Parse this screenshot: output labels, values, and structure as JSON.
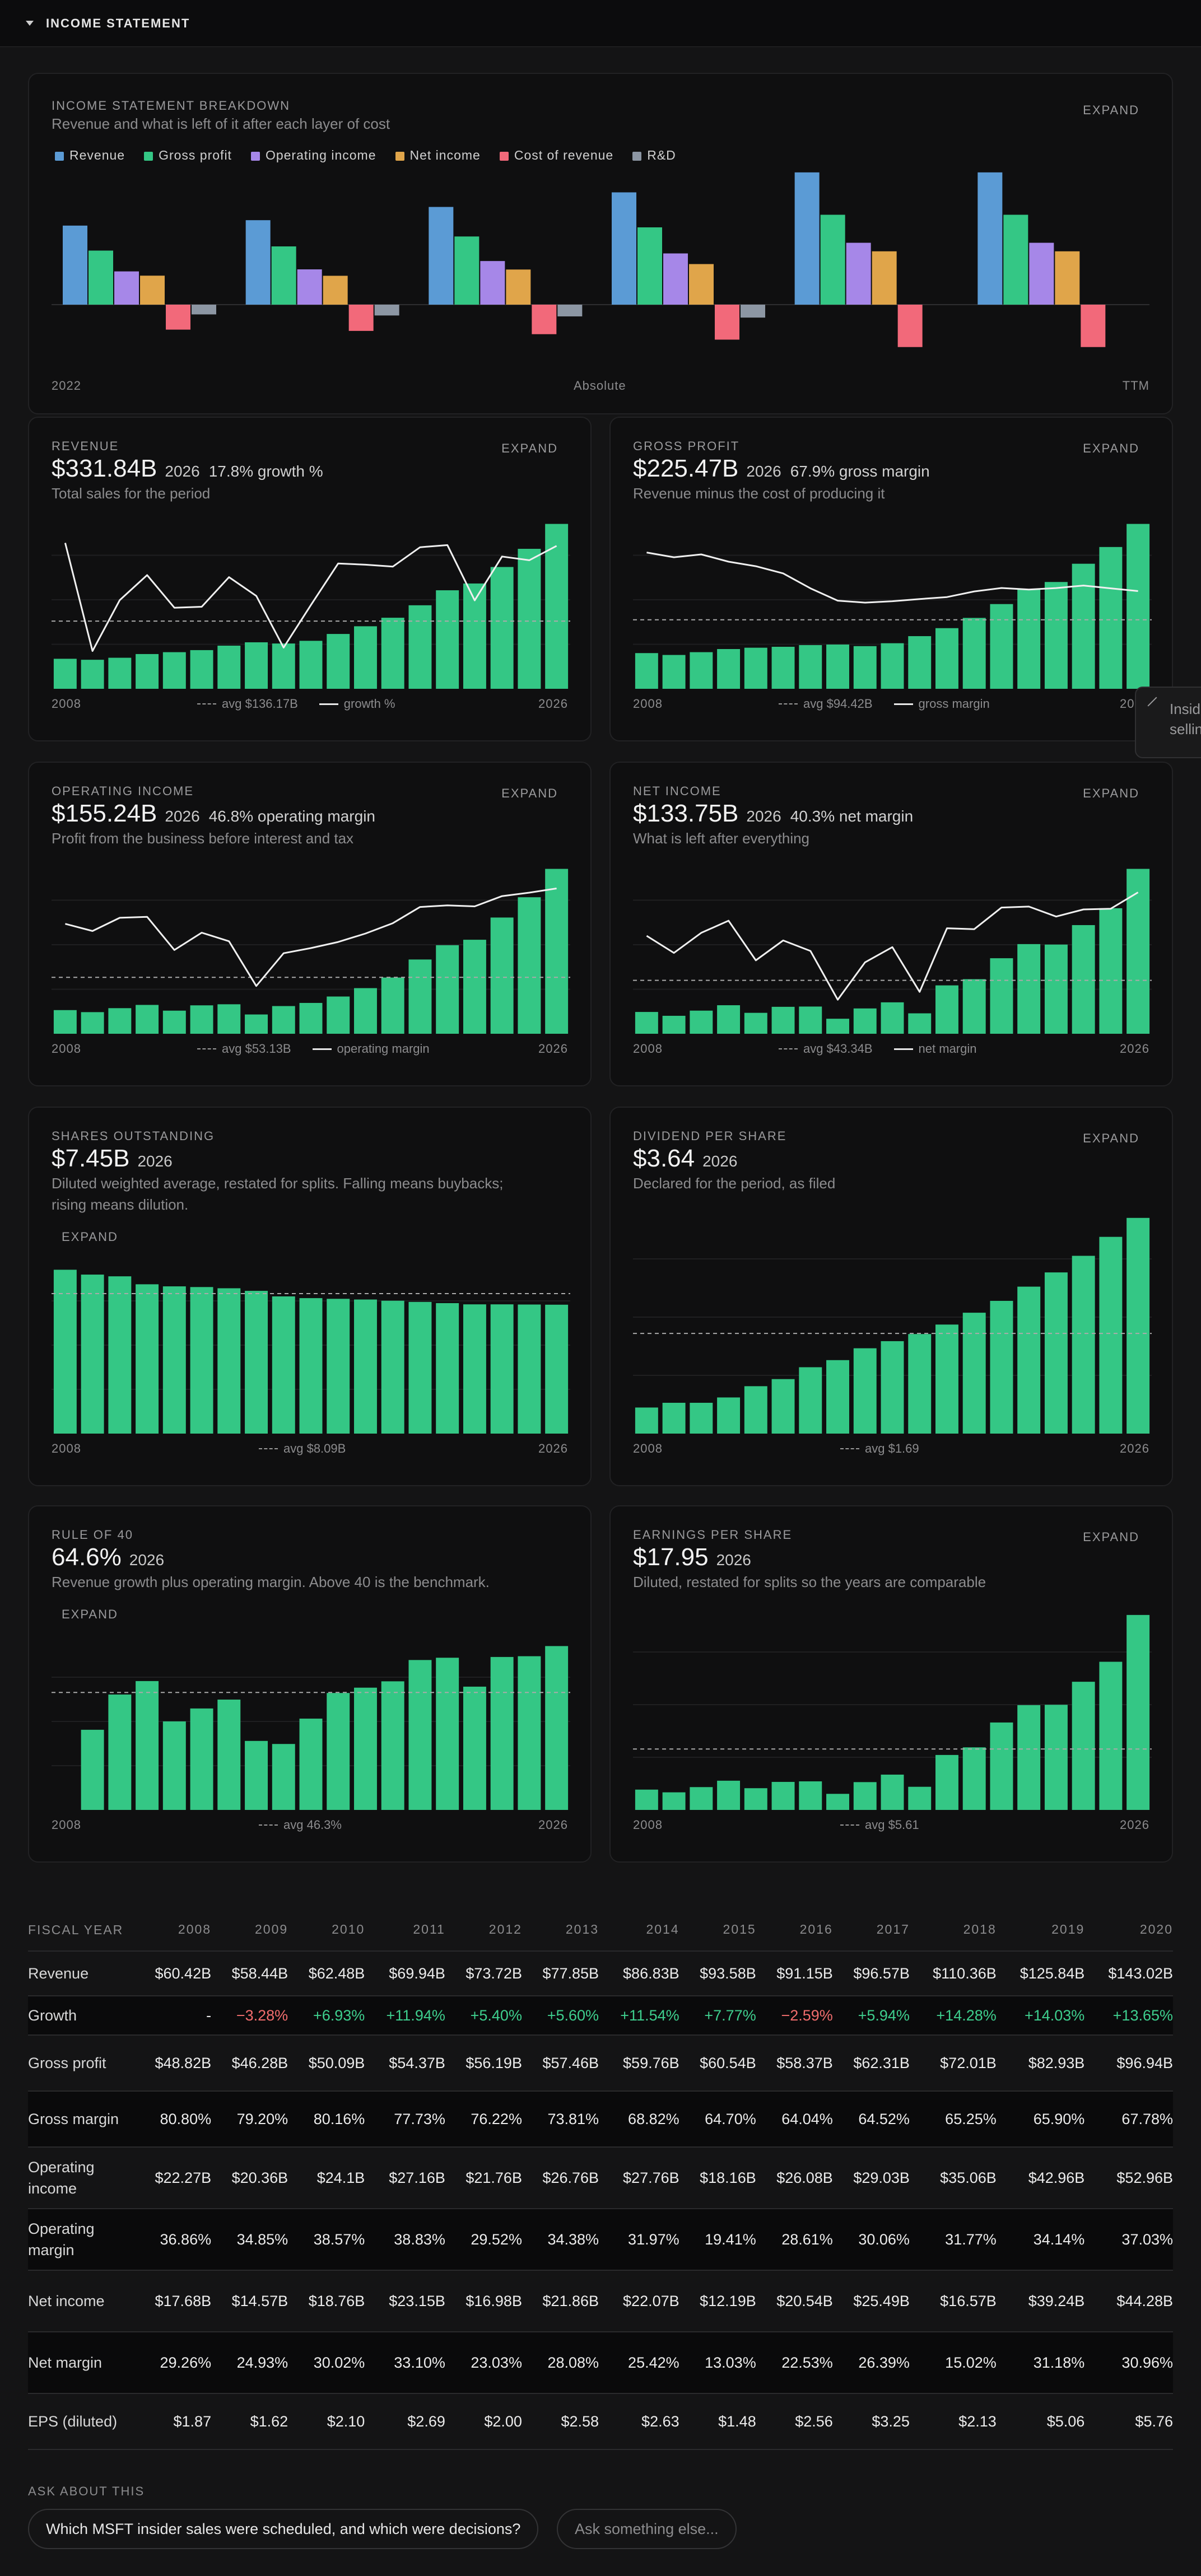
{
  "header": {
    "title": "INCOME STATEMENT"
  },
  "breakdown": {
    "label": "INCOME STATEMENT BREAKDOWN",
    "subtitle": "Revenue and what is left of it after each layer of cost",
    "expand": "EXPAND",
    "footer_left": "2022",
    "footer_center": "Absolute",
    "footer_right": "TTM"
  },
  "cards": {
    "revenue": {
      "label": "REVENUE",
      "value": "$331.84B",
      "year": "2026",
      "extra": "17.8% growth %",
      "sub": "Total sales for the period",
      "expand": "EXPAND",
      "start": "2008",
      "end": "2026",
      "avg": "avg $136.17B",
      "line": "growth %"
    },
    "gross": {
      "label": "GROSS PROFIT",
      "value": "$225.47B",
      "year": "2026",
      "extra": "67.9% gross margin",
      "sub": "Revenue minus the cost of producing it",
      "expand": "EXPAND",
      "start": "2008",
      "end": "2026",
      "avg": "avg $94.42B",
      "line": "gross margin"
    },
    "opinc": {
      "label": "OPERATING INCOME",
      "value": "$155.24B",
      "year": "2026",
      "extra": "46.8% operating margin",
      "sub": "Profit from the business before interest and tax",
      "expand": "EXPAND",
      "start": "2008",
      "end": "2026",
      "avg": "avg $53.13B",
      "line": "operating margin"
    },
    "netinc": {
      "label": "NET INCOME",
      "value": "$133.75B",
      "year": "2026",
      "extra": "40.3% net margin",
      "sub": "What is left after everything",
      "expand": "EXPAND",
      "start": "2008",
      "end": "2026",
      "avg": "avg $43.34B",
      "line": "net margin"
    },
    "shares": {
      "label": "SHARES OUTSTANDING",
      "value": "$7.45B",
      "year": "2026",
      "sub1": "Diluted weighted average, restated for splits. Falling means buybacks;",
      "sub2": "rising means dilution.",
      "expand": "EXPAND",
      "start": "2008",
      "end": "2026",
      "avg": "avg $8.09B"
    },
    "dps": {
      "label": "DIVIDEND PER SHARE",
      "value": "$3.64",
      "year": "2026",
      "sub": "Declared for the period, as filed",
      "expand": "EXPAND",
      "start": "2008",
      "end": "2026",
      "avg": "avg $1.69"
    },
    "rule40": {
      "label": "RULE OF 40",
      "value": "64.6%",
      "year": "2026",
      "sub": "Revenue growth plus operating margin. Above 40 is the benchmark.",
      "expand": "EXPAND",
      "start": "2008",
      "end": "2026",
      "avg": "avg 46.3%"
    },
    "eps": {
      "label": "EARNINGS PER SHARE",
      "value": "$17.95",
      "year": "2026",
      "sub": "Diluted, restated for splits so the years are comparable",
      "expand": "EXPAND",
      "start": "2008",
      "end": "2026",
      "avg": "avg $5.61"
    }
  },
  "tooltip": {
    "l1": "Insid",
    "l2": "sellin"
  },
  "table": {
    "header_label": "FISCAL YEAR",
    "years": [
      "2008",
      "2009",
      "2010",
      "2011",
      "2012",
      "2013",
      "2014",
      "2015",
      "2016",
      "2017",
      "2018",
      "2019",
      "2020"
    ],
    "rows": [
      {
        "label": "Revenue",
        "values": [
          "$60.42B",
          "$58.44B",
          "$62.48B",
          "$69.94B",
          "$73.72B",
          "$77.85B",
          "$86.83B",
          "$93.58B",
          "$91.15B",
          "$96.57B",
          "$110.36B",
          "$125.84B",
          "$143.02B"
        ]
      },
      {
        "label": "Growth",
        "values": [
          "-",
          "−3.28%",
          "+6.93%",
          "+11.94%",
          "+5.40%",
          "+5.60%",
          "+11.54%",
          "+7.77%",
          "−2.59%",
          "+5.94%",
          "+14.28%",
          "+14.03%",
          "+13.65%"
        ]
      },
      {
        "label": "Gross profit",
        "values": [
          "$48.82B",
          "$46.28B",
          "$50.09B",
          "$54.37B",
          "$56.19B",
          "$57.46B",
          "$59.76B",
          "$60.54B",
          "$58.37B",
          "$62.31B",
          "$72.01B",
          "$82.93B",
          "$96.94B"
        ]
      },
      {
        "label": "Gross margin",
        "values": [
          "80.80%",
          "79.20%",
          "80.16%",
          "77.73%",
          "76.22%",
          "73.81%",
          "68.82%",
          "64.70%",
          "64.04%",
          "64.52%",
          "65.25%",
          "65.90%",
          "67.78%"
        ]
      },
      {
        "label": "Operating income",
        "values": [
          "$22.27B",
          "$20.36B",
          "$24.1B",
          "$27.16B",
          "$21.76B",
          "$26.76B",
          "$27.76B",
          "$18.16B",
          "$26.08B",
          "$29.03B",
          "$35.06B",
          "$42.96B",
          "$52.96B"
        ]
      },
      {
        "label": "Operating margin",
        "values": [
          "36.86%",
          "34.85%",
          "38.57%",
          "38.83%",
          "29.52%",
          "34.38%",
          "31.97%",
          "19.41%",
          "28.61%",
          "30.06%",
          "31.77%",
          "34.14%",
          "37.03%"
        ]
      },
      {
        "label": "Net income",
        "values": [
          "$17.68B",
          "$14.57B",
          "$18.76B",
          "$23.15B",
          "$16.98B",
          "$21.86B",
          "$22.07B",
          "$12.19B",
          "$20.54B",
          "$25.49B",
          "$16.57B",
          "$39.24B",
          "$44.28B"
        ]
      },
      {
        "label": "Net margin",
        "values": [
          "29.26%",
          "24.93%",
          "30.02%",
          "33.10%",
          "23.03%",
          "28.08%",
          "25.42%",
          "13.03%",
          "22.53%",
          "26.39%",
          "15.02%",
          "31.18%",
          "30.96%"
        ]
      },
      {
        "label": "EPS (diluted)",
        "values": [
          "$1.87",
          "$1.62",
          "$2.10",
          "$2.69",
          "$2.00",
          "$2.58",
          "$2.63",
          "$1.48",
          "$2.56",
          "$3.25",
          "$2.13",
          "$5.06",
          "$5.76"
        ]
      }
    ]
  },
  "ask": {
    "label": "ASK ABOUT THIS",
    "suggestion": "Which MSFT insider sales were scheduled, and which were decisions?",
    "placeholder": "Ask something else..."
  },
  "colors": {
    "bar": "#34c785",
    "revenue": "#5b9bd5",
    "gross": "#34c785",
    "operating": "#a687e8",
    "net": "#e0a54a",
    "cost": "#f2697a",
    "rnd": "#8c96a3",
    "line": "#f0f0f0"
  },
  "chart_data": [
    {
      "type": "bar",
      "title": "INCOME STATEMENT BREAKDOWN",
      "categories": [
        "2022",
        "2023",
        "2024",
        "2025",
        "2026",
        "TTM"
      ],
      "series": [
        {
          "name": "Revenue",
          "values": [
            198.3,
            211.9,
            245.1,
            281.7,
            331.8,
            331.8
          ]
        },
        {
          "name": "Gross profit",
          "values": [
            135.6,
            146.1,
            171.0,
            193.9,
            225.5,
            225.5
          ]
        },
        {
          "name": "Operating income",
          "values": [
            83.4,
            88.5,
            109.4,
            128.5,
            155.2,
            155.2
          ]
        },
        {
          "name": "Net income",
          "values": [
            72.7,
            72.4,
            88.1,
            101.8,
            133.8,
            133.8
          ]
        },
        {
          "name": "Cost of revenue",
          "values": [
            -62.7,
            -65.9,
            -74.1,
            -87.8,
            -106.4,
            -106.4
          ]
        },
        {
          "name": "R&D",
          "values": [
            -24.5,
            -27.2,
            -29.5,
            -32.5,
            0,
            0
          ]
        }
      ]
    },
    {
      "type": "bar",
      "title": "REVENUE",
      "x": [
        "2008",
        "2009",
        "2010",
        "2011",
        "2012",
        "2013",
        "2014",
        "2015",
        "2016",
        "2017",
        "2018",
        "2019",
        "2020",
        "2021",
        "2022",
        "2023",
        "2024",
        "2025",
        "2026"
      ],
      "values": [
        60.42,
        58.44,
        62.48,
        69.94,
        73.72,
        77.85,
        86.83,
        93.58,
        91.15,
        96.57,
        110.36,
        125.84,
        143.02,
        168.09,
        198.27,
        211.92,
        245.12,
        281.72,
        331.84
      ],
      "line": {
        "name": "growth %",
        "values": [
          18.4,
          -3.28,
          6.93,
          11.94,
          5.4,
          5.6,
          11.54,
          7.77,
          -2.59,
          5.94,
          14.28,
          14.03,
          13.65,
          17.53,
          17.96,
          6.88,
          15.67,
          14.93,
          17.8
        ]
      },
      "average": 136.17
    },
    {
      "type": "bar",
      "title": "GROSS PROFIT",
      "x": [
        "2008",
        "2009",
        "2010",
        "2011",
        "2012",
        "2013",
        "2014",
        "2015",
        "2016",
        "2017",
        "2018",
        "2019",
        "2020",
        "2021",
        "2022",
        "2023",
        "2024",
        "2025",
        "2026"
      ],
      "values": [
        48.82,
        46.28,
        50.09,
        54.37,
        56.19,
        57.46,
        59.76,
        60.54,
        58.37,
        62.31,
        72.01,
        82.93,
        96.94,
        115.86,
        135.62,
        146.05,
        171.01,
        193.89,
        225.47
      ],
      "line": {
        "name": "gross margin",
        "values": [
          80.8,
          79.2,
          80.16,
          77.73,
          76.22,
          73.81,
          68.82,
          64.7,
          64.04,
          64.52,
          65.25,
          65.9,
          67.78,
          68.93,
          68.4,
          68.92,
          69.76,
          68.82,
          67.9
        ]
      },
      "average": 94.42
    },
    {
      "type": "bar",
      "title": "OPERATING INCOME",
      "x": [
        "2008",
        "2009",
        "2010",
        "2011",
        "2012",
        "2013",
        "2014",
        "2015",
        "2016",
        "2017",
        "2018",
        "2019",
        "2020",
        "2021",
        "2022",
        "2023",
        "2024",
        "2025",
        "2026"
      ],
      "values": [
        22.27,
        20.36,
        24.1,
        27.16,
        21.76,
        26.76,
        27.76,
        18.16,
        26.08,
        29.03,
        35.06,
        42.96,
        52.96,
        69.92,
        83.38,
        88.52,
        109.43,
        128.53,
        155.24
      ],
      "line": {
        "name": "operating margin",
        "values": [
          36.86,
          34.85,
          38.57,
          38.83,
          29.52,
          34.38,
          31.97,
          19.41,
          28.61,
          30.06,
          31.77,
          34.14,
          37.03,
          41.59,
          42.06,
          41.77,
          44.64,
          45.62,
          46.8
        ]
      },
      "average": 53.13
    },
    {
      "type": "bar",
      "title": "NET INCOME",
      "x": [
        "2008",
        "2009",
        "2010",
        "2011",
        "2012",
        "2013",
        "2014",
        "2015",
        "2016",
        "2017",
        "2018",
        "2019",
        "2020",
        "2021",
        "2022",
        "2023",
        "2024",
        "2025",
        "2026"
      ],
      "values": [
        17.68,
        14.57,
        18.76,
        23.15,
        16.98,
        21.86,
        22.07,
        12.19,
        20.54,
        25.49,
        16.57,
        39.24,
        44.28,
        61.27,
        72.74,
        72.36,
        88.14,
        101.83,
        133.75
      ],
      "line": {
        "name": "net margin",
        "values": [
          29.26,
          24.93,
          30.02,
          33.1,
          23.03,
          28.08,
          25.42,
          13.03,
          22.53,
          26.39,
          15.02,
          31.18,
          30.96,
          36.45,
          36.69,
          34.15,
          35.96,
          36.15,
          40.3
        ]
      },
      "average": 43.34
    },
    {
      "type": "bar",
      "title": "SHARES OUTSTANDING",
      "x": [
        "2008",
        "2009",
        "2010",
        "2011",
        "2012",
        "2013",
        "2014",
        "2015",
        "2016",
        "2017",
        "2018",
        "2019",
        "2020",
        "2021",
        "2022",
        "2023",
        "2024",
        "2025",
        "2026"
      ],
      "values": [
        9.47,
        9.19,
        9.09,
        8.63,
        8.51,
        8.47,
        8.4,
        8.25,
        7.93,
        7.83,
        7.79,
        7.75,
        7.68,
        7.61,
        7.54,
        7.47,
        7.47,
        7.46,
        7.45
      ],
      "average": 8.09
    },
    {
      "type": "bar",
      "title": "DIVIDEND PER SHARE",
      "x": [
        "2008",
        "2009",
        "2010",
        "2011",
        "2012",
        "2013",
        "2014",
        "2015",
        "2016",
        "2017",
        "2018",
        "2019",
        "2020",
        "2021",
        "2022",
        "2023",
        "2024",
        "2025",
        "2026"
      ],
      "values": [
        0.44,
        0.52,
        0.52,
        0.61,
        0.8,
        0.92,
        1.12,
        1.24,
        1.44,
        1.56,
        1.68,
        1.84,
        2.04,
        2.24,
        2.48,
        2.72,
        3.0,
        3.32,
        3.64
      ],
      "average": 1.69
    },
    {
      "type": "bar",
      "title": "RULE OF 40",
      "x": [
        "2009",
        "2010",
        "2011",
        "2012",
        "2013",
        "2014",
        "2015",
        "2016",
        "2017",
        "2018",
        "2019",
        "2020",
        "2021",
        "2022",
        "2023",
        "2024",
        "2025",
        "2026"
      ],
      "values": [
        31.6,
        45.5,
        50.8,
        34.9,
        40.0,
        43.5,
        27.2,
        26.0,
        36.0,
        46.1,
        48.2,
        50.7,
        59.1,
        60.0,
        48.6,
        60.3,
        60.6,
        64.6
      ],
      "average": 46.3
    },
    {
      "type": "bar",
      "title": "EARNINGS PER SHARE",
      "x": [
        "2008",
        "2009",
        "2010",
        "2011",
        "2012",
        "2013",
        "2014",
        "2015",
        "2016",
        "2017",
        "2018",
        "2019",
        "2020",
        "2021",
        "2022",
        "2023",
        "2024",
        "2025",
        "2026"
      ],
      "values": [
        1.87,
        1.62,
        2.1,
        2.69,
        2.0,
        2.58,
        2.63,
        1.48,
        2.56,
        3.25,
        2.13,
        5.06,
        5.76,
        8.05,
        9.65,
        9.68,
        11.8,
        13.64,
        17.95
      ],
      "average": 5.61
    }
  ]
}
